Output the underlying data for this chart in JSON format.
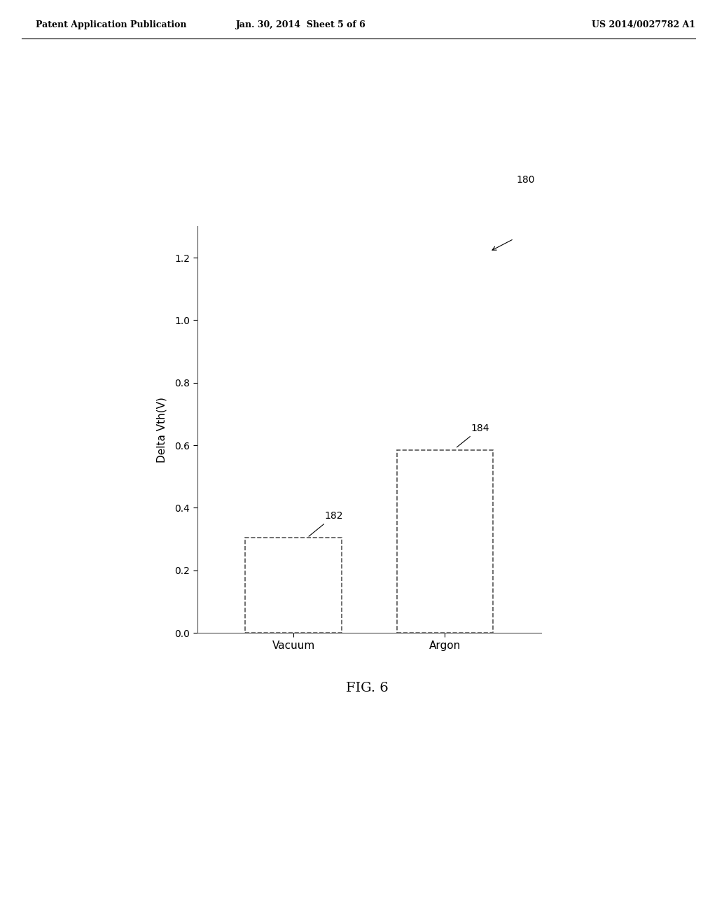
{
  "categories": [
    "Vacuum",
    "Argon"
  ],
  "values": [
    0.305,
    0.585
  ],
  "bar_color": "#ffffff",
  "bar_edge_color": "#555555",
  "bar_linewidth": 1.2,
  "ylabel": "Delta Vth(V)",
  "ylim": [
    0.0,
    1.3
  ],
  "yticks": [
    0.0,
    0.2,
    0.4,
    0.6,
    0.8,
    1.0,
    1.2
  ],
  "bar_width": 0.28,
  "bar_positions": [
    0.28,
    0.72
  ],
  "figure_label": "FIG. 6",
  "label_182": "182",
  "label_184": "184",
  "label_180": "180",
  "header_left": "Patent Application Publication",
  "header_mid": "Jan. 30, 2014  Sheet 5 of 6",
  "header_right": "US 2014/0027782 A1",
  "background_color": "#ffffff",
  "text_color": "#000000",
  "axis_color": "#555555",
  "ylabel_fontsize": 11,
  "tick_fontsize": 10,
  "header_fontsize": 9,
  "figlabel_fontsize": 14
}
